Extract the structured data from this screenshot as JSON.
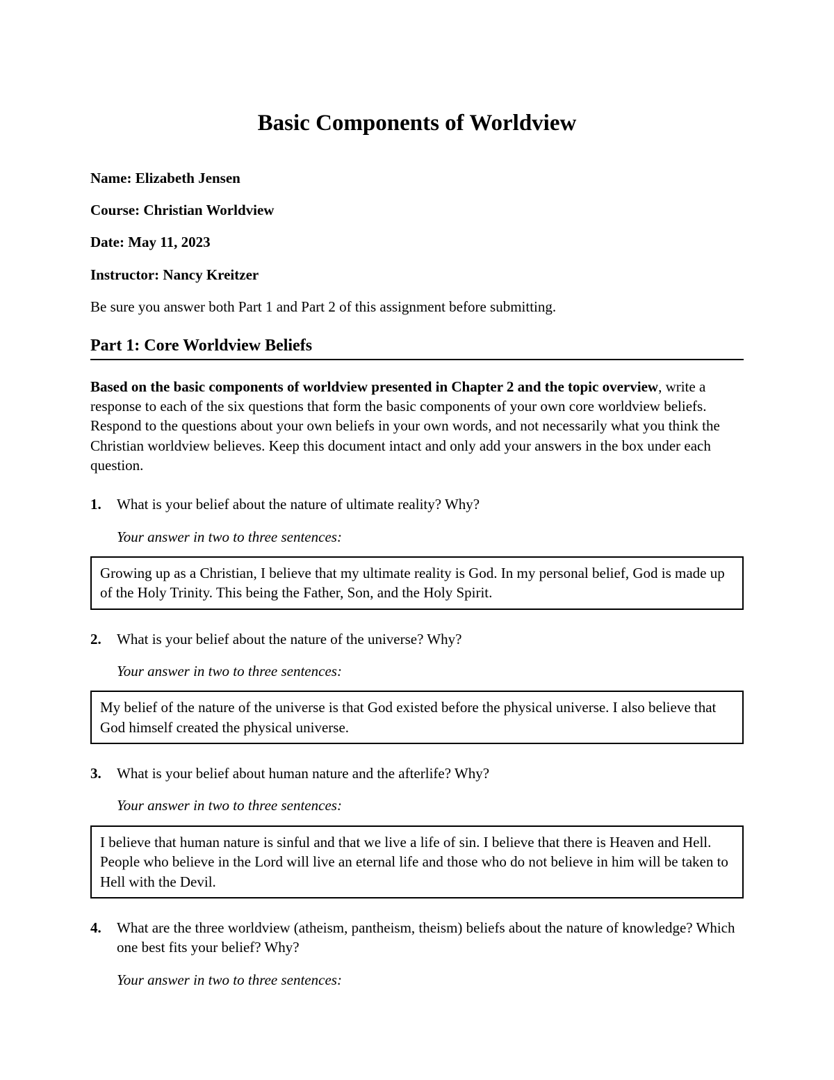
{
  "title": "Basic Components of Worldview",
  "meta": {
    "name_label": "Name:",
    "name_value": "Elizabeth Jensen",
    "course_label": "Course:",
    "course_value": "Christian Worldview",
    "date_label": "Date:",
    "date_value": "May 11, 2023",
    "instructor_label": "Instructor:",
    "instructor_value": "Nancy Kreitzer"
  },
  "instructions": "Be sure you answer both Part 1 and Part 2 of this assignment before submitting.",
  "part1_heading": "Part 1: Core Worldview Beliefs",
  "overview_bold": "Based on the basic components of worldview presented in Chapter 2 and the topic overview",
  "overview_rest": ", write a response to each of the six questions that form the basic components of your own core worldview beliefs. Respond to the questions about your own beliefs in your own words, and not necessarily what you think the Christian worldview believes. Keep this document intact and only add your answers in the box under each question.",
  "answer_prompt": "Your answer in two to three sentences:",
  "questions": [
    {
      "num": "1.",
      "text": "What is your belief about the nature of ultimate reality? Why?",
      "answer": "Growing up as a Christian, I believe that my ultimate reality is God. In my personal belief, God is made up of the Holy Trinity. This being the Father, Son, and the Holy Spirit."
    },
    {
      "num": "2.",
      "text": "What is your belief about the nature of the universe? Why?",
      "answer": "My belief of the nature of the universe is that God existed before the physical universe. I also believe that God himself created the physical universe."
    },
    {
      "num": "3.",
      "text": "What is your belief about human nature and the afterlife? Why?",
      "answer": "I believe that human nature is sinful and that we live a life of sin. I believe that there is Heaven and Hell. People who believe in the Lord will live an eternal life and those who do not believe in him will be taken to Hell with the Devil."
    },
    {
      "num": "4.",
      "text": "What are the three worldview (atheism, pantheism, theism) beliefs about the nature of knowledge? Which one best fits your belief? Why?",
      "answer": ""
    }
  ],
  "colors": {
    "text": "#000000",
    "background": "#ffffff",
    "border": "#000000"
  },
  "typography": {
    "title_fontsize": 33,
    "body_fontsize": 21,
    "part_heading_fontsize": 24,
    "font_family": "Times New Roman"
  }
}
